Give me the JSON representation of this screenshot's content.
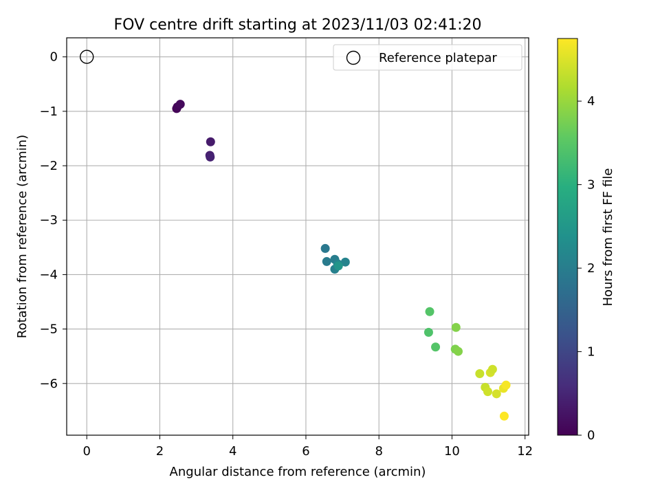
{
  "chart_data": {
    "type": "scatter",
    "title": "FOV centre drift starting at 2023/11/03 02:41:20",
    "xlabel": "Angular distance from reference (arcmin)",
    "ylabel": "Rotation from reference (arcmin)",
    "xlim": [
      -0.55,
      12.1
    ],
    "ylim": [
      -6.95,
      0.35
    ],
    "x_ticks": [
      0,
      2,
      4,
      6,
      8,
      10,
      12
    ],
    "y_ticks": [
      0,
      -1,
      -2,
      -3,
      -4,
      -5,
      -6
    ],
    "grid": true,
    "legend": {
      "position": "top-right",
      "entries": [
        "Reference platepar"
      ]
    },
    "reference_point": {
      "x": 0,
      "y": 0
    },
    "colorbar": {
      "label": "Hours from first FF file",
      "range": [
        0,
        4.75
      ],
      "ticks": [
        0,
        1,
        2,
        3,
        4
      ],
      "colormap": "viridis"
    },
    "points": [
      {
        "x": 2.46,
        "y": -0.95,
        "c": 0.03
      },
      {
        "x": 2.48,
        "y": -0.92,
        "c": 0.08
      },
      {
        "x": 2.56,
        "y": -0.87,
        "c": 0.12
      },
      {
        "x": 3.39,
        "y": -1.56,
        "c": 0.35
      },
      {
        "x": 3.37,
        "y": -1.81,
        "c": 0.4
      },
      {
        "x": 3.38,
        "y": -1.84,
        "c": 0.45
      },
      {
        "x": 6.53,
        "y": -3.52,
        "c": 1.9
      },
      {
        "x": 6.57,
        "y": -3.76,
        "c": 1.95
      },
      {
        "x": 6.79,
        "y": -3.72,
        "c": 2.0
      },
      {
        "x": 6.79,
        "y": -3.9,
        "c": 2.05
      },
      {
        "x": 6.87,
        "y": -3.8,
        "c": 2.15
      },
      {
        "x": 7.08,
        "y": -3.77,
        "c": 2.1
      },
      {
        "x": 6.89,
        "y": -3.84,
        "c": 2.45
      },
      {
        "x": 9.39,
        "y": -4.68,
        "c": 3.45
      },
      {
        "x": 9.36,
        "y": -5.06,
        "c": 3.4
      },
      {
        "x": 9.55,
        "y": -5.33,
        "c": 3.45
      },
      {
        "x": 10.11,
        "y": -4.97,
        "c": 3.85
      },
      {
        "x": 10.09,
        "y": -5.37,
        "c": 3.8
      },
      {
        "x": 10.17,
        "y": -5.41,
        "c": 3.85
      },
      {
        "x": 10.76,
        "y": -5.82,
        "c": 4.35
      },
      {
        "x": 10.91,
        "y": -6.07,
        "c": 4.35
      },
      {
        "x": 10.98,
        "y": -6.15,
        "c": 4.4
      },
      {
        "x": 11.05,
        "y": -5.8,
        "c": 4.45
      },
      {
        "x": 11.11,
        "y": -5.74,
        "c": 4.4
      },
      {
        "x": 11.22,
        "y": -6.19,
        "c": 4.45
      },
      {
        "x": 11.41,
        "y": -6.09,
        "c": 4.6
      },
      {
        "x": 11.48,
        "y": -6.03,
        "c": 4.7
      },
      {
        "x": 11.43,
        "y": -6.6,
        "c": 4.75
      }
    ]
  }
}
